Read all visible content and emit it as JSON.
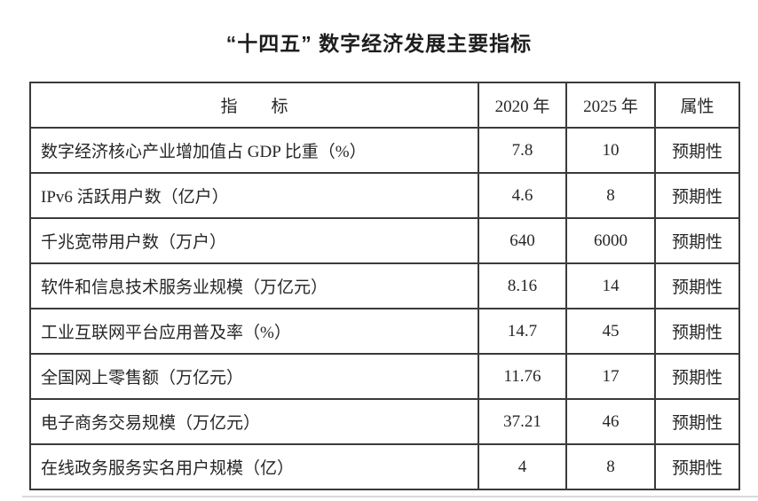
{
  "page_title": "“十四五” 数字经济发展主要指标",
  "colors": {
    "background": "#ffffff",
    "border": "#3a3a3a",
    "text": "#262626",
    "artifact": "#d9d9d9"
  },
  "table": {
    "headers": {
      "indicator": "指　　标",
      "y2020": "2020 年",
      "y2025": "2025 年",
      "attribute": "属性"
    },
    "rows": [
      {
        "label": "数字经济核心产业增加值占 GDP 比重（%）",
        "v2020": "7.8",
        "v2025": "10",
        "attr": "预期性"
      },
      {
        "label": "IPv6 活跃用户数（亿户）",
        "v2020": "4.6",
        "v2025": "8",
        "attr": "预期性"
      },
      {
        "label": "千兆宽带用户数（万户）",
        "v2020": "640",
        "v2025": "6000",
        "attr": "预期性"
      },
      {
        "label": "软件和信息技术服务业规模（万亿元）",
        "v2020": "8.16",
        "v2025": "14",
        "attr": "预期性"
      },
      {
        "label": "工业互联网平台应用普及率（%）",
        "v2020": "14.7",
        "v2025": "45",
        "attr": "预期性"
      },
      {
        "label": "全国网上零售额（万亿元）",
        "v2020": "11.76",
        "v2025": "17",
        "attr": "预期性"
      },
      {
        "label": "电子商务交易规模（万亿元）",
        "v2020": "37.21",
        "v2025": "46",
        "attr": "预期性"
      },
      {
        "label": "在线政务服务实名用户规模（亿）",
        "v2020": "4",
        "v2025": "8",
        "attr": "预期性"
      }
    ]
  }
}
